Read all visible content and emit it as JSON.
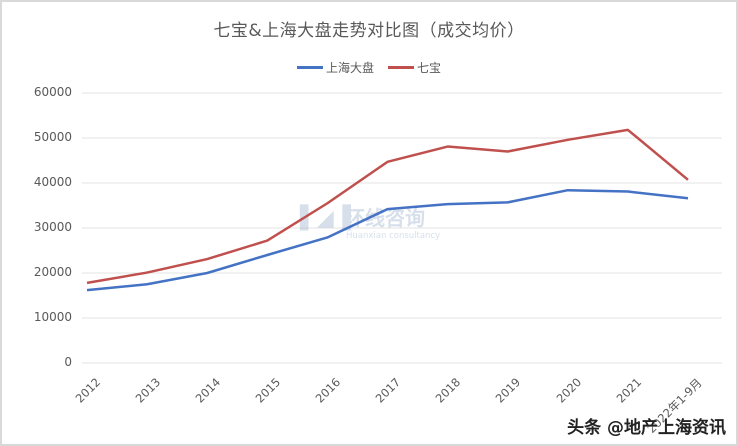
{
  "chart_data": {
    "type": "line",
    "title": "七宝&上海大盘走势对比图（成交均价）",
    "xlabel": "",
    "ylabel": "",
    "categories": [
      "2012",
      "2013",
      "2014",
      "2015",
      "2016",
      "2017",
      "2018",
      "2019",
      "2020",
      "2021",
      "2022年1-9月"
    ],
    "series": [
      {
        "name": "上海大盘",
        "color": "#4472c4",
        "values": [
          16200,
          17500,
          20000,
          24000,
          27900,
          34200,
          35300,
          35700,
          38400,
          38100,
          36600
        ]
      },
      {
        "name": "七宝",
        "color": "#c0504d",
        "values": [
          17800,
          20100,
          23100,
          27200,
          35500,
          44700,
          48100,
          47000,
          49600,
          51800,
          40700
        ]
      }
    ],
    "ylim": [
      0,
      60000
    ],
    "yticks": [
      "0",
      "10000",
      "20000",
      "30000",
      "40000",
      "50000",
      "60000"
    ],
    "grid": true,
    "legend_position": "top"
  },
  "watermark": {
    "cn": "环线咨询",
    "en": "Huanxian consultancy"
  },
  "credit": "头条 @地产上海资讯"
}
